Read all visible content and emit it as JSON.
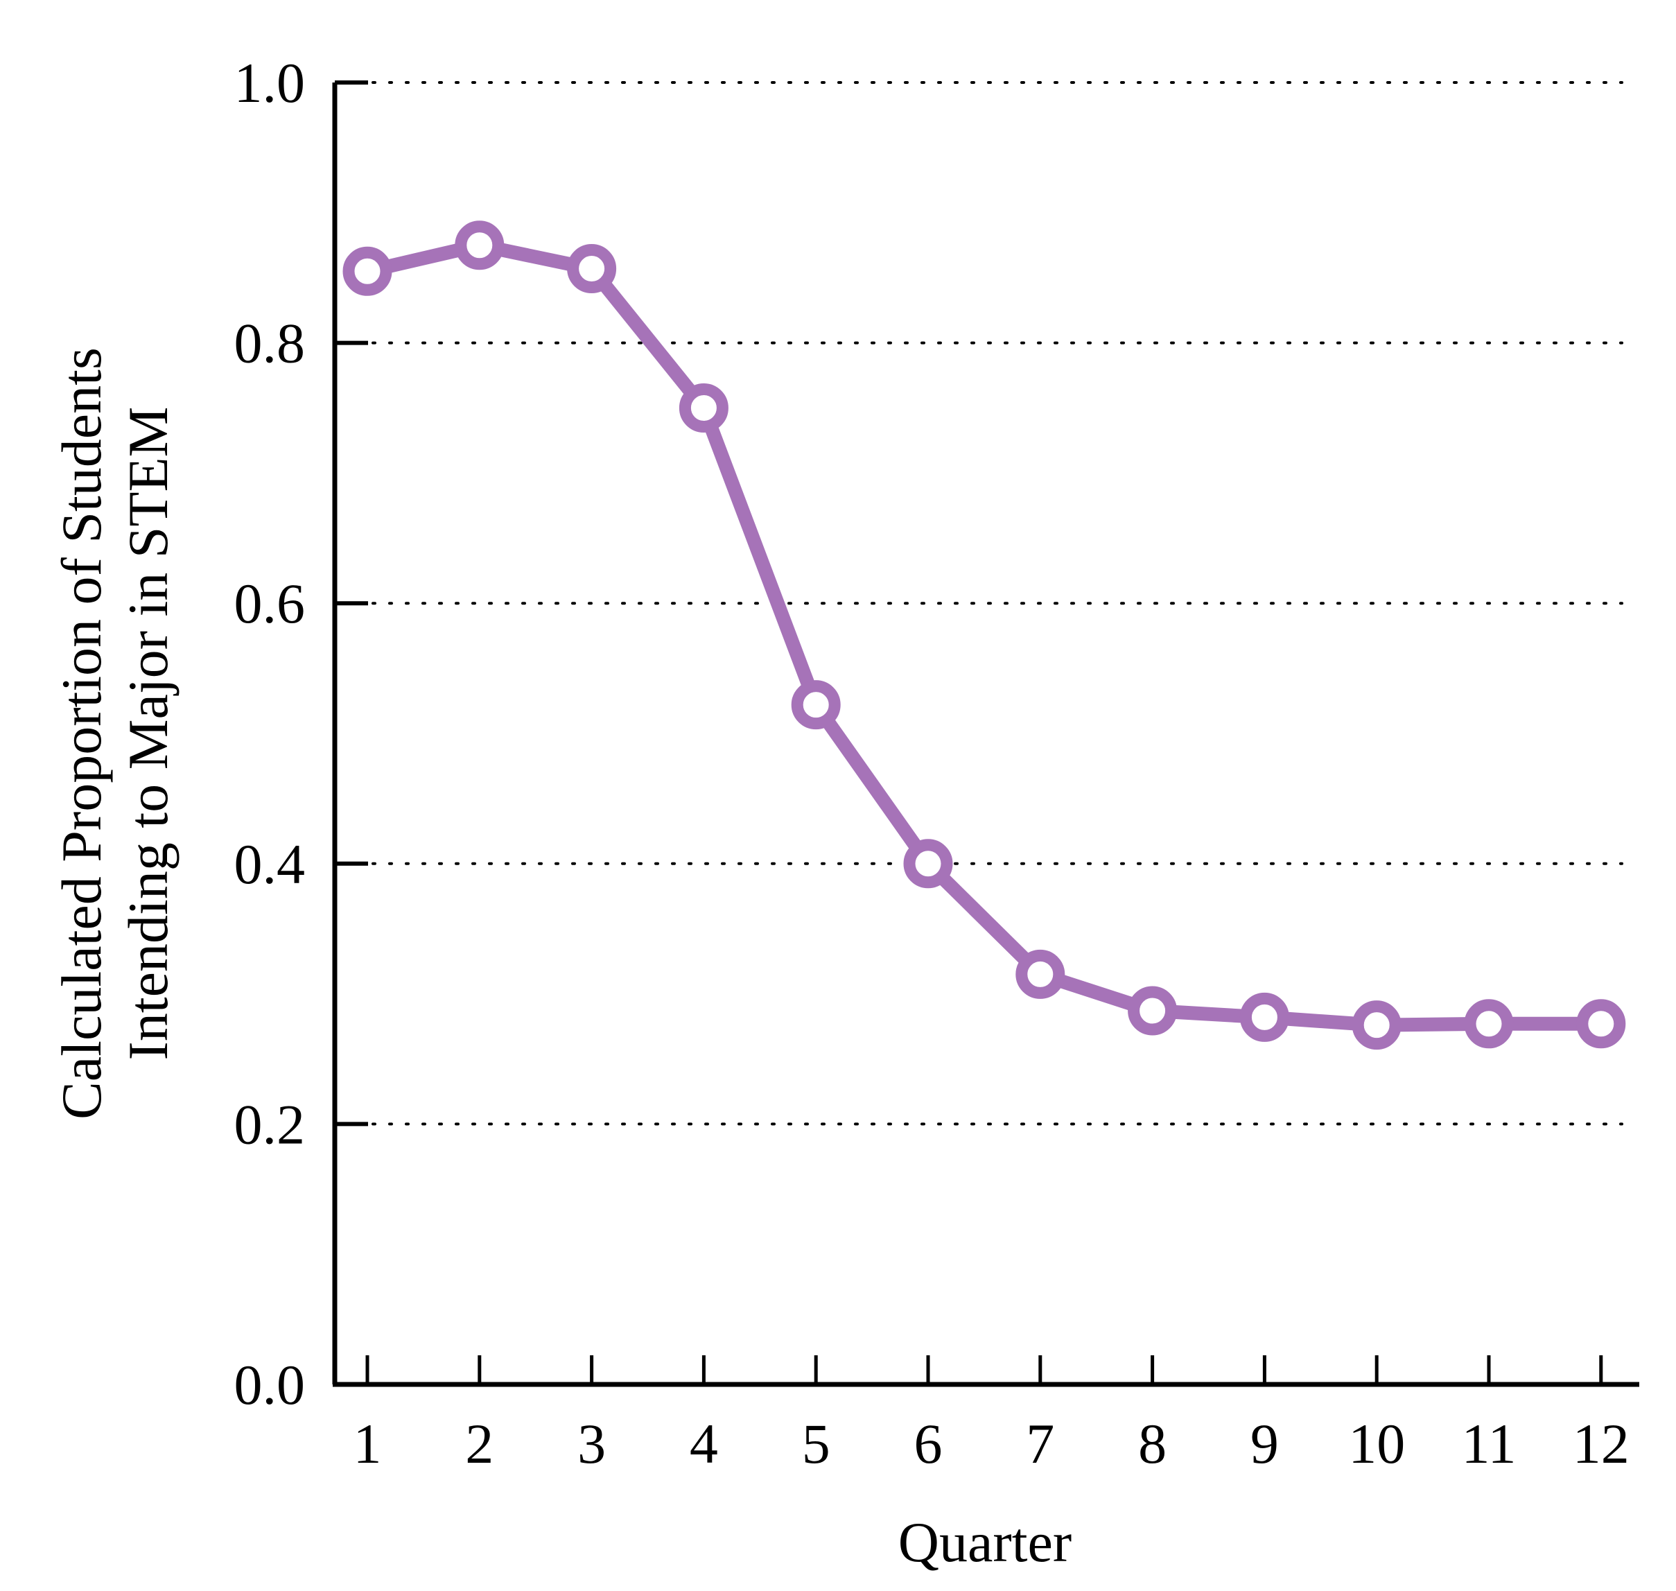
{
  "chart_data": {
    "type": "line",
    "title": "",
    "xlabel": "Quarter",
    "ylabel_lines": [
      "Calculated Proportion of Students",
      "Intending to Major in STEM"
    ],
    "x": [
      1,
      2,
      3,
      4,
      5,
      6,
      7,
      8,
      9,
      10,
      11,
      12
    ],
    "x_tick_labels": [
      "1",
      "2",
      "3",
      "4",
      "5",
      "6",
      "7",
      "8",
      "9",
      "10",
      "11",
      "12"
    ],
    "series": [
      {
        "name": "Proportion intending STEM",
        "values": [
          0.855,
          0.875,
          0.857,
          0.75,
          0.522,
          0.4,
          0.315,
          0.287,
          0.282,
          0.276,
          0.277,
          0.277
        ],
        "color": "#a673b8"
      }
    ],
    "y_ticks": [
      0.0,
      0.2,
      0.4,
      0.6,
      0.8,
      1.0
    ],
    "y_tick_labels": [
      "0.0",
      "0.2",
      "0.4",
      "0.6",
      "0.8",
      "1.0"
    ],
    "ylim": [
      0,
      1.0
    ],
    "grid": "horizontal dotted",
    "legend": "none"
  }
}
